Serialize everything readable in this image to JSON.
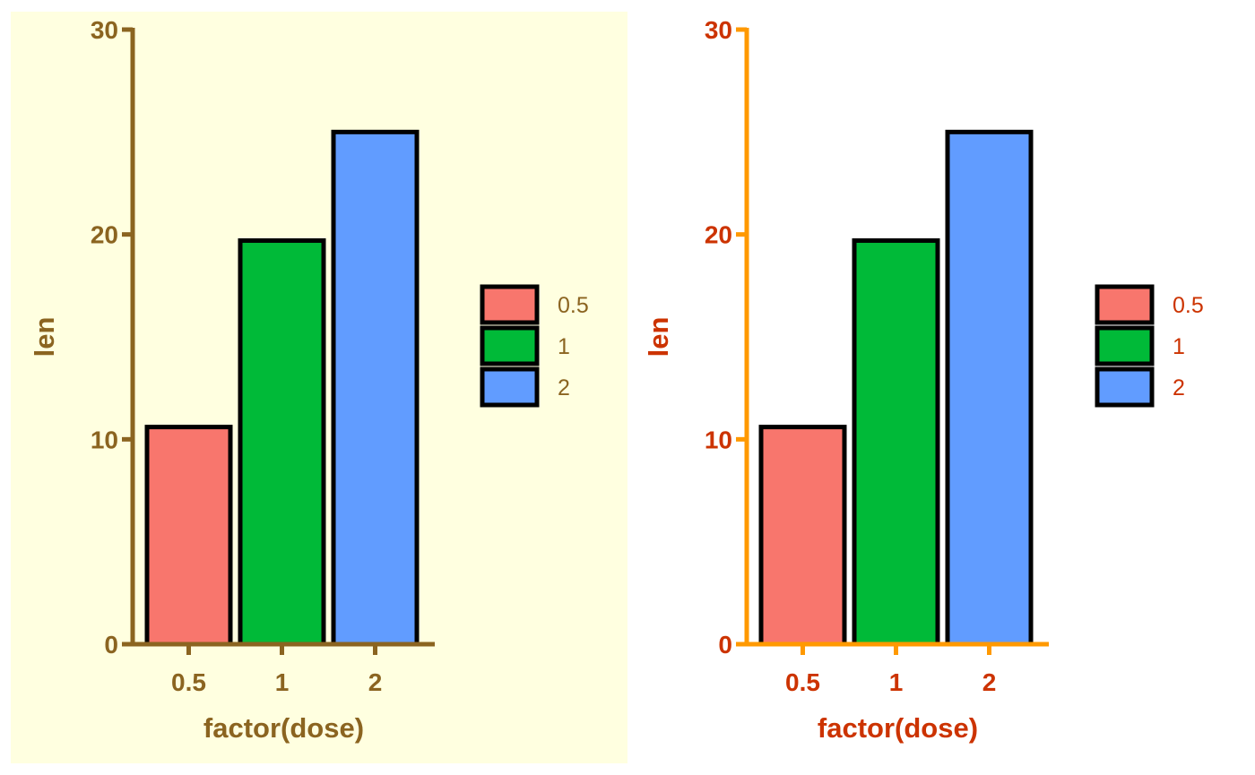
{
  "chart_data": [
    {
      "type": "bar",
      "categories": [
        "0.5",
        "1",
        "2"
      ],
      "values": [
        10.6,
        19.7,
        25
      ],
      "xlabel": "factor(dose)",
      "ylabel": "len",
      "ylim": [
        0,
        30
      ],
      "yticks": [
        0,
        10,
        20,
        30
      ],
      "bar_colors": [
        "#F8766D",
        "#00BA38",
        "#619CFF"
      ],
      "bar_outline": "#000000",
      "legend": {
        "placement": "right",
        "entries": [
          "0.5",
          "1",
          "2"
        ]
      },
      "grid": false,
      "panel_background": "#FFFFE0",
      "axis_color": "#8B6420",
      "text_color": "#8B6420"
    },
    {
      "type": "bar",
      "categories": [
        "0.5",
        "1",
        "2"
      ],
      "values": [
        10.6,
        19.7,
        25
      ],
      "xlabel": "factor(dose)",
      "ylabel": "len",
      "ylim": [
        0,
        30
      ],
      "yticks": [
        0,
        10,
        20,
        30
      ],
      "bar_colors": [
        "#F8766D",
        "#00BA38",
        "#619CFF"
      ],
      "bar_outline": "#000000",
      "legend": {
        "placement": "right",
        "entries": [
          "0.5",
          "1",
          "2"
        ]
      },
      "grid": false,
      "panel_background": "#FFFFFF",
      "axis_color": "#FF9900",
      "text_color": "#CC3300"
    }
  ]
}
